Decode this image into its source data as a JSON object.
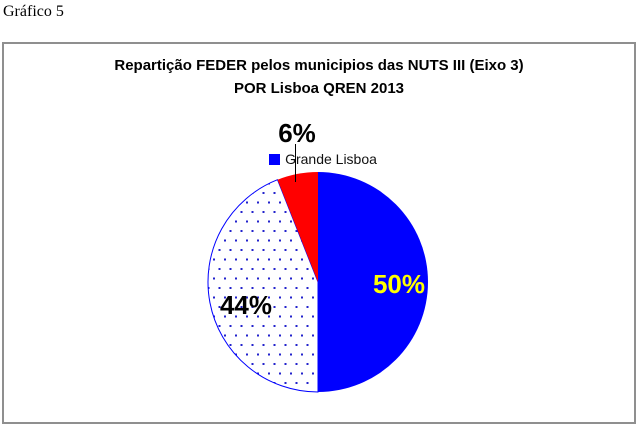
{
  "caption": "Gráfico 5",
  "chart_data": {
    "type": "pie",
    "title": "Repartição FEDER pelos municipios das NUTS III (Eixo 3) POR Lisboa QREN 2013",
    "title_line1": "Repartição FEDER pelos municipios das NUTS III (Eixo 3)",
    "title_line2": "POR Lisboa QREN 2013",
    "legend": {
      "position": "top-center",
      "entries": [
        {
          "label": "Grande Lisboa",
          "color": "#0000ff"
        }
      ]
    },
    "start_angle_deg": 0,
    "direction": "clockwise",
    "slices": [
      {
        "name": "Grande Lisboa",
        "value_pct": 50,
        "display": "50%",
        "color": "#0000ff",
        "label_color": "#ffff00"
      },
      {
        "value_pct": 44,
        "display": "44%",
        "fill_pattern": "dots",
        "pattern_bg": "#ffffff",
        "pattern_dot_color": "#2222cc",
        "outline_color": "#0000ff",
        "label_color": "#000000"
      },
      {
        "value_pct": 6,
        "display": "6%",
        "color": "#ff0000",
        "label_color": "#000000"
      }
    ]
  }
}
